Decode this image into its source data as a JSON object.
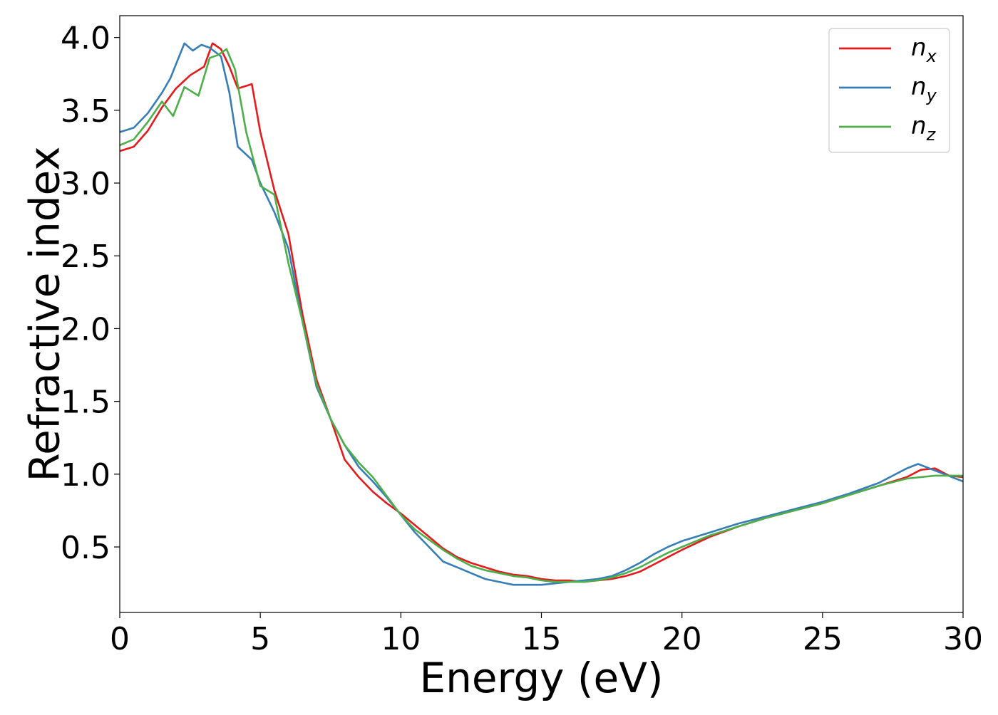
{
  "chart_data": {
    "type": "line",
    "xlabel": "Energy (eV)",
    "ylabel": "Refractive index",
    "xlim": [
      0,
      30
    ],
    "ylim": [
      0.05,
      4.15
    ],
    "xticks": [
      0,
      5,
      10,
      15,
      20,
      25,
      30
    ],
    "xtick_labels": [
      "0",
      "5",
      "10",
      "15",
      "20",
      "25",
      "30"
    ],
    "yticks": [
      0.5,
      1.0,
      1.5,
      2.0,
      2.5,
      3.0,
      3.5,
      4.0
    ],
    "ytick_labels": [
      "0.5",
      "1.0",
      "1.5",
      "2.0",
      "2.5",
      "3.0",
      "3.5",
      "4.0"
    ],
    "grid": false,
    "legend_position": "top-right",
    "series": [
      {
        "name": "n",
        "subscript": "x",
        "color": "#e41a1c",
        "x": [
          0,
          0.5,
          1.0,
          1.5,
          2.0,
          2.5,
          3.0,
          3.3,
          3.6,
          3.9,
          4.2,
          4.7,
          5.0,
          5.5,
          6.0,
          6.5,
          7.0,
          7.5,
          8.0,
          8.5,
          9.0,
          9.5,
          10.0,
          10.5,
          11.0,
          11.5,
          12.0,
          12.5,
          13.0,
          13.5,
          14.0,
          14.5,
          15.0,
          15.5,
          16.0,
          16.5,
          17.0,
          17.5,
          18.0,
          18.5,
          19.0,
          19.5,
          20.0,
          21.0,
          22.0,
          23.0,
          24.0,
          25.0,
          26.0,
          27.0,
          28.0,
          28.5,
          29.0,
          29.5,
          30.0
        ],
        "y": [
          3.22,
          3.25,
          3.36,
          3.52,
          3.65,
          3.74,
          3.8,
          3.96,
          3.92,
          3.8,
          3.65,
          3.68,
          3.35,
          2.95,
          2.65,
          2.1,
          1.65,
          1.38,
          1.1,
          0.98,
          0.88,
          0.8,
          0.73,
          0.65,
          0.57,
          0.49,
          0.43,
          0.39,
          0.36,
          0.33,
          0.31,
          0.3,
          0.28,
          0.27,
          0.27,
          0.26,
          0.27,
          0.28,
          0.3,
          0.33,
          0.38,
          0.43,
          0.48,
          0.57,
          0.64,
          0.7,
          0.75,
          0.8,
          0.86,
          0.92,
          0.98,
          1.03,
          1.04,
          0.99,
          0.98
        ]
      },
      {
        "name": "n",
        "subscript": "y",
        "color": "#377eb8",
        "x": [
          0,
          0.5,
          1.0,
          1.5,
          1.8,
          2.3,
          2.6,
          2.9,
          3.2,
          3.6,
          3.9,
          4.2,
          4.7,
          5.0,
          5.5,
          6.0,
          6.5,
          7.0,
          7.5,
          8.0,
          8.5,
          9.0,
          9.5,
          10.0,
          10.5,
          11.0,
          11.5,
          12.0,
          12.5,
          13.0,
          13.5,
          14.0,
          14.5,
          15.0,
          15.5,
          16.0,
          16.5,
          17.0,
          17.5,
          18.0,
          18.5,
          19.0,
          19.5,
          20.0,
          21.0,
          22.0,
          23.0,
          24.0,
          25.0,
          26.0,
          27.0,
          28.0,
          28.4,
          28.8,
          29.2,
          29.6,
          30.0
        ],
        "y": [
          3.35,
          3.38,
          3.48,
          3.62,
          3.72,
          3.96,
          3.91,
          3.95,
          3.93,
          3.87,
          3.62,
          3.25,
          3.16,
          3.0,
          2.8,
          2.55,
          2.05,
          1.6,
          1.38,
          1.2,
          1.05,
          0.95,
          0.84,
          0.72,
          0.6,
          0.5,
          0.4,
          0.36,
          0.32,
          0.28,
          0.26,
          0.24,
          0.24,
          0.24,
          0.25,
          0.26,
          0.27,
          0.28,
          0.3,
          0.34,
          0.39,
          0.45,
          0.5,
          0.54,
          0.6,
          0.66,
          0.71,
          0.76,
          0.81,
          0.87,
          0.94,
          1.04,
          1.07,
          1.04,
          1.01,
          0.98,
          0.95
        ]
      },
      {
        "name": "n",
        "subscript": "z",
        "color": "#4daf4a",
        "x": [
          0,
          0.5,
          1.0,
          1.5,
          1.9,
          2.3,
          2.8,
          3.2,
          3.5,
          3.8,
          4.1,
          4.5,
          5.0,
          5.5,
          6.0,
          6.5,
          7.0,
          7.5,
          8.0,
          8.5,
          9.0,
          9.5,
          10.0,
          10.5,
          11.0,
          11.5,
          12.0,
          12.5,
          13.0,
          13.5,
          14.0,
          14.5,
          15.0,
          15.5,
          16.0,
          16.5,
          17.0,
          17.5,
          18.0,
          18.5,
          19.0,
          19.5,
          20.0,
          21.0,
          22.0,
          23.0,
          24.0,
          25.0,
          26.0,
          27.0,
          28.0,
          29.0,
          30.0
        ],
        "y": [
          3.26,
          3.3,
          3.42,
          3.56,
          3.46,
          3.66,
          3.6,
          3.86,
          3.88,
          3.92,
          3.78,
          3.35,
          2.98,
          2.92,
          2.45,
          2.05,
          1.62,
          1.38,
          1.2,
          1.08,
          0.98,
          0.85,
          0.72,
          0.62,
          0.55,
          0.48,
          0.42,
          0.37,
          0.34,
          0.32,
          0.3,
          0.29,
          0.27,
          0.26,
          0.26,
          0.26,
          0.27,
          0.29,
          0.32,
          0.36,
          0.41,
          0.46,
          0.5,
          0.58,
          0.64,
          0.7,
          0.75,
          0.8,
          0.86,
          0.92,
          0.97,
          0.99,
          0.99
        ]
      }
    ]
  }
}
